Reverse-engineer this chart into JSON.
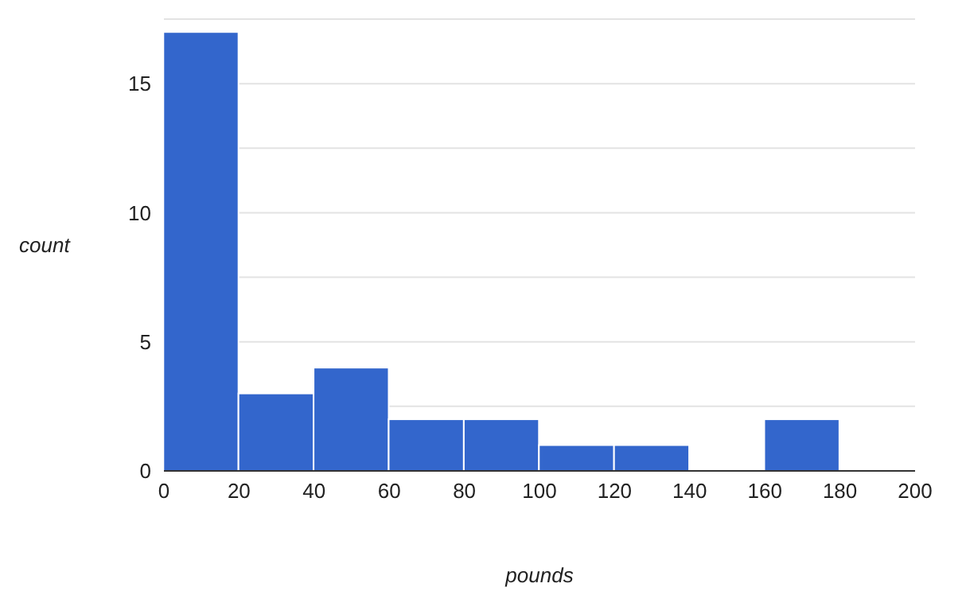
{
  "chart_data": {
    "type": "histogram",
    "xlabel": "pounds",
    "ylabel": "count",
    "bins": [
      0,
      20,
      40,
      60,
      80,
      100,
      120,
      140,
      160,
      180,
      200
    ],
    "values": [
      17,
      3,
      4,
      2,
      2,
      1,
      1,
      0,
      2,
      0
    ],
    "color": "#3366cc",
    "xlim": [
      0,
      200
    ],
    "xticks": [
      0,
      20,
      40,
      60,
      80,
      100,
      120,
      140,
      160,
      180,
      200
    ],
    "ylim": [
      0,
      17.5
    ],
    "yticks": [
      0,
      {
        "value": 2.5,
        "label": null
      },
      5,
      {
        "value": 7.5,
        "label": null
      },
      10,
      {
        "value": 12.5,
        "label": null
      },
      15,
      {
        "value": 17.5,
        "label": null
      }
    ],
    "grid": "y"
  }
}
